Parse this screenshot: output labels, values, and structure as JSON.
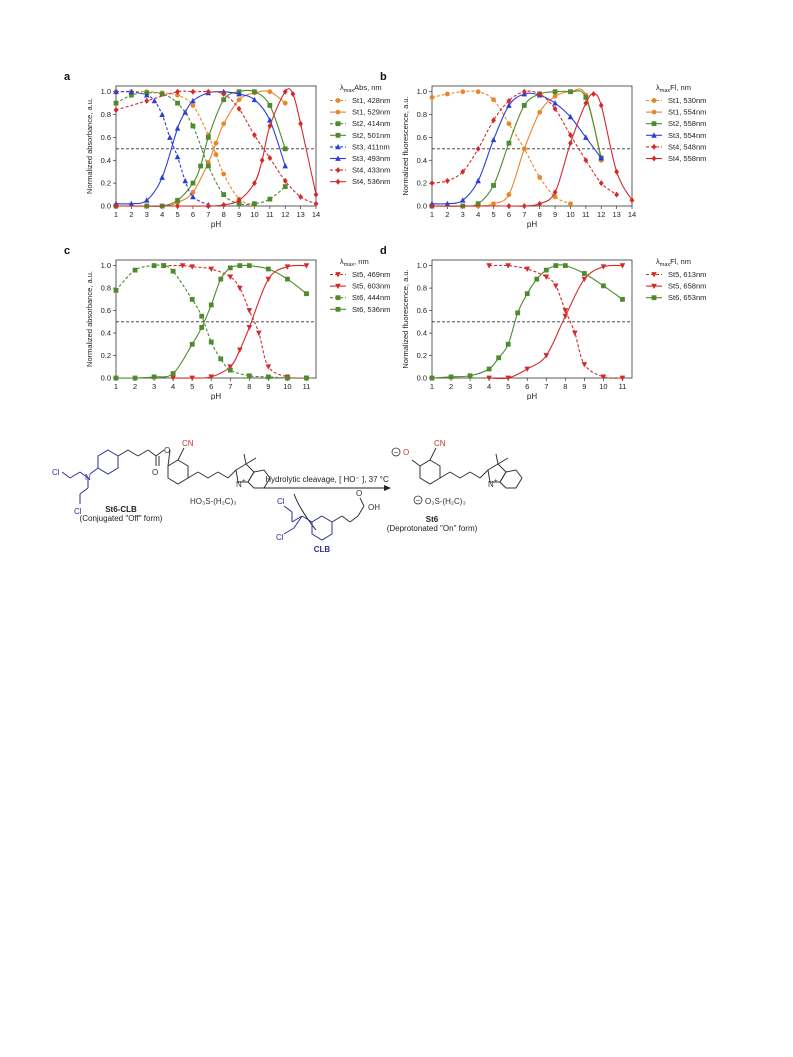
{
  "chart_data": [
    {
      "type": "line",
      "panel_label": "a",
      "xlabel": "pH",
      "ylabel": "Normalized absorbance, a.u.",
      "xlim": [
        1,
        14
      ],
      "ylim": [
        0,
        1.05
      ],
      "xticks": [
        1,
        2,
        3,
        4,
        5,
        6,
        7,
        8,
        9,
        10,
        11,
        12,
        13,
        14
      ],
      "yticks": [
        0.0,
        0.2,
        0.4,
        0.6,
        0.8,
        1.0
      ],
      "ytick_labels": [
        "0.0",
        "0.2",
        "0.4",
        "0.6",
        "0.8",
        "1.0"
      ],
      "reference_line": 0.5,
      "legend_title_prefix": "λ",
      "legend_title_sub": "max",
      "legend_title_suffix": "Abs, nm",
      "legend_position": "right",
      "series": [
        {
          "name": "St1, 428nm",
          "color": "#e8862a",
          "dash": true,
          "marker": "circle",
          "x": [
            1,
            2,
            3,
            4,
            5,
            6,
            7,
            7.5,
            8,
            9,
            10
          ],
          "y": [
            1.0,
            1.0,
            1.0,
            0.99,
            0.97,
            0.88,
            0.62,
            0.45,
            0.28,
            0.06,
            0.01
          ]
        },
        {
          "name": "St1, 529nm",
          "color": "#e8862a",
          "dash": false,
          "marker": "circle",
          "x": [
            1,
            4,
            5,
            6,
            7,
            7.5,
            8,
            9,
            10,
            11,
            12
          ],
          "y": [
            0.0,
            0.0,
            0.03,
            0.12,
            0.38,
            0.55,
            0.72,
            0.93,
            0.99,
            1.0,
            0.9
          ]
        },
        {
          "name": "St2, 414nm",
          "color": "#4e8a2e",
          "dash": true,
          "marker": "square",
          "x": [
            1,
            2,
            3,
            4,
            5,
            6,
            7,
            8,
            9,
            10,
            11,
            12
          ],
          "y": [
            0.9,
            0.97,
            0.99,
            0.98,
            0.9,
            0.7,
            0.35,
            0.1,
            0.02,
            0.02,
            0.06,
            0.17
          ]
        },
        {
          "name": "St2, 501nm",
          "color": "#4e8a2e",
          "dash": false,
          "marker": "square",
          "x": [
            1,
            3,
            4,
            5,
            6,
            6.5,
            7,
            8,
            9,
            10,
            11,
            12
          ],
          "y": [
            0.0,
            0.0,
            0.0,
            0.05,
            0.2,
            0.35,
            0.6,
            0.93,
            1.0,
            1.0,
            0.88,
            0.5
          ]
        },
        {
          "name": "St3, 411nm",
          "color": "#2b3fd6",
          "dash": true,
          "marker": "triangle",
          "x": [
            1,
            2,
            3,
            3.5,
            4,
            4.5,
            5,
            5.5,
            6,
            7
          ],
          "y": [
            1.0,
            1.0,
            0.97,
            0.92,
            0.8,
            0.6,
            0.43,
            0.22,
            0.08,
            0.01
          ]
        },
        {
          "name": "St3, 493nm",
          "color": "#2b3fd6",
          "dash": false,
          "marker": "triangle",
          "x": [
            1,
            2,
            3,
            4,
            5,
            5.5,
            6,
            7,
            8,
            9,
            10,
            11,
            12
          ],
          "y": [
            0.02,
            0.02,
            0.05,
            0.25,
            0.68,
            0.82,
            0.92,
            0.99,
            1.0,
            0.98,
            0.93,
            0.75,
            0.35
          ]
        },
        {
          "name": "St4, 433nm",
          "color": "#d42a2a",
          "dash": true,
          "marker": "diamond",
          "x": [
            1,
            3,
            5,
            6,
            7,
            8,
            9,
            10,
            11,
            12,
            13,
            14
          ],
          "y": [
            0.84,
            0.92,
            1.0,
            1.0,
            1.0,
            0.98,
            0.85,
            0.62,
            0.42,
            0.22,
            0.08,
            0.02
          ]
        },
        {
          "name": "St4, 536nm",
          "color": "#d42a2a",
          "dash": false,
          "marker": "diamond",
          "x": [
            1,
            5,
            7,
            8,
            9,
            10,
            10.5,
            11,
            12,
            12.5,
            13,
            14
          ],
          "y": [
            0.0,
            0.0,
            0.0,
            0.01,
            0.05,
            0.2,
            0.4,
            0.7,
            1.0,
            0.98,
            0.72,
            0.1
          ]
        }
      ]
    },
    {
      "type": "line",
      "panel_label": "b",
      "xlabel": "pH",
      "ylabel": "Normalized fluorescence, a.u.",
      "xlim": [
        1,
        14
      ],
      "ylim": [
        0,
        1.05
      ],
      "xticks": [
        1,
        2,
        3,
        4,
        5,
        6,
        7,
        8,
        9,
        10,
        11,
        12,
        13,
        14
      ],
      "yticks": [
        0.0,
        0.2,
        0.4,
        0.6,
        0.8,
        1.0
      ],
      "ytick_labels": [
        "0.0",
        "0.2",
        "0.4",
        "0.6",
        "0.8",
        "1.0"
      ],
      "reference_line": 0.5,
      "legend_title_prefix": "λ",
      "legend_title_sub": "max",
      "legend_title_suffix": "Fl, nm",
      "legend_position": "right",
      "series": [
        {
          "name": "St1, 530nm",
          "color": "#e8862a",
          "dash": true,
          "marker": "circle",
          "x": [
            1,
            2,
            3,
            4,
            5,
            6,
            7,
            8,
            9,
            10
          ],
          "y": [
            0.95,
            0.98,
            1.0,
            1.0,
            0.93,
            0.72,
            0.5,
            0.25,
            0.08,
            0.02
          ]
        },
        {
          "name": "St1, 554nm",
          "color": "#e8862a",
          "dash": false,
          "marker": "circle",
          "x": [
            1,
            4,
            5,
            6,
            7,
            8,
            9,
            10,
            11,
            12
          ],
          "y": [
            0.0,
            0.0,
            0.02,
            0.1,
            0.5,
            0.82,
            0.96,
            1.0,
            0.97,
            0.4
          ]
        },
        {
          "name": "St2, 558nm",
          "color": "#4e8a2e",
          "dash": false,
          "marker": "square",
          "x": [
            1,
            3,
            4,
            5,
            6,
            7,
            8,
            9,
            10,
            11,
            12
          ],
          "y": [
            0.0,
            0.0,
            0.02,
            0.18,
            0.55,
            0.88,
            0.98,
            1.0,
            1.0,
            0.95,
            0.42
          ]
        },
        {
          "name": "St3, 554nm",
          "color": "#2b3fd6",
          "dash": false,
          "marker": "triangle",
          "x": [
            1,
            2,
            3,
            4,
            5,
            6,
            7,
            8,
            9,
            10,
            11,
            12
          ],
          "y": [
            0.02,
            0.02,
            0.05,
            0.22,
            0.58,
            0.88,
            0.98,
            0.97,
            0.9,
            0.78,
            0.6,
            0.42
          ]
        },
        {
          "name": "St4, 548nm",
          "color": "#d42a2a",
          "dash": true,
          "marker": "diamond",
          "x": [
            1,
            2,
            3,
            4,
            5,
            6,
            7,
            8,
            9,
            10,
            11,
            12,
            13
          ],
          "y": [
            0.2,
            0.22,
            0.3,
            0.5,
            0.75,
            0.92,
            1.0,
            0.98,
            0.85,
            0.62,
            0.4,
            0.2,
            0.1
          ]
        },
        {
          "name": "St4, 558nm",
          "color": "#d42a2a",
          "dash": false,
          "marker": "diamond",
          "x": [
            1,
            6,
            7,
            8,
            9,
            10,
            11,
            11.5,
            12,
            13,
            14
          ],
          "y": [
            0.0,
            0.0,
            0.0,
            0.02,
            0.12,
            0.55,
            0.9,
            0.98,
            0.88,
            0.3,
            0.05
          ]
        }
      ]
    },
    {
      "type": "line",
      "panel_label": "c",
      "xlabel": "pH",
      "ylabel": "Normalized absorbance, a.u.",
      "xlim": [
        1,
        11.5
      ],
      "ylim": [
        0,
        1.05
      ],
      "xticks": [
        1,
        2,
        3,
        4,
        5,
        6,
        7,
        8,
        9,
        10,
        11
      ],
      "yticks": [
        0.0,
        0.2,
        0.4,
        0.6,
        0.8,
        1.0
      ],
      "ytick_labels": [
        "0.0",
        "0.2",
        "0.4",
        "0.6",
        "0.8",
        "1.0"
      ],
      "reference_line": 0.5,
      "legend_title_prefix": "λ",
      "legend_title_sub": "max",
      "legend_title_suffix": ", nm",
      "legend_position": "right",
      "series": [
        {
          "name": "St5, 469nm",
          "color": "#d42a2a",
          "dash": true,
          "marker": "triangle-down",
          "x": [
            3.5,
            4.5,
            5,
            6,
            7,
            7.5,
            8,
            8.5,
            9,
            10,
            11
          ],
          "y": [
            1.0,
            1.0,
            0.99,
            0.97,
            0.9,
            0.8,
            0.6,
            0.4,
            0.1,
            0.01,
            0.0
          ]
        },
        {
          "name": "St5, 603nm",
          "color": "#d42a2a",
          "dash": false,
          "marker": "triangle-down",
          "x": [
            4,
            5,
            6,
            7,
            7.5,
            8,
            9,
            10,
            11
          ],
          "y": [
            0.0,
            0.0,
            0.01,
            0.1,
            0.25,
            0.45,
            0.88,
            0.99,
            1.0
          ]
        },
        {
          "name": "St6, 444nm",
          "color": "#4e8a2e",
          "dash": true,
          "marker": "square",
          "x": [
            1,
            2,
            3,
            3.5,
            4,
            5,
            5.5,
            6,
            6.5,
            7,
            8,
            9,
            10,
            11
          ],
          "y": [
            0.78,
            0.96,
            1.0,
            1.0,
            0.95,
            0.7,
            0.55,
            0.32,
            0.17,
            0.07,
            0.02,
            0.01,
            0.0,
            0.0
          ]
        },
        {
          "name": "St6, 536nm",
          "color": "#4e8a2e",
          "dash": false,
          "marker": "square",
          "x": [
            1,
            2,
            3,
            4,
            5,
            5.5,
            6,
            6.5,
            7,
            7.5,
            8,
            9,
            10,
            11
          ],
          "y": [
            0.0,
            0.0,
            0.01,
            0.04,
            0.3,
            0.45,
            0.65,
            0.88,
            0.98,
            1.0,
            1.0,
            0.97,
            0.88,
            0.75
          ]
        }
      ]
    },
    {
      "type": "line",
      "panel_label": "d",
      "xlabel": "pH",
      "ylabel": "Normalized fluorescence, a.u.",
      "xlim": [
        1,
        11.5
      ],
      "ylim": [
        0,
        1.05
      ],
      "xticks": [
        1,
        2,
        3,
        4,
        5,
        6,
        7,
        8,
        9,
        10,
        11
      ],
      "yticks": [
        0.0,
        0.2,
        0.4,
        0.6,
        0.8,
        1.0
      ],
      "ytick_labels": [
        "0.0",
        "0.2",
        "0.4",
        "0.6",
        "0.8",
        "1.0"
      ],
      "reference_line": 0.5,
      "legend_title_prefix": "λ",
      "legend_title_sub": "max",
      "legend_title_suffix": "Fl, nm",
      "legend_position": "right",
      "series": [
        {
          "name": "St5, 613nm",
          "color": "#d42a2a",
          "dash": true,
          "marker": "triangle-down",
          "x": [
            4,
            5,
            6,
            7,
            7.5,
            8,
            8.5,
            9,
            10,
            11
          ],
          "y": [
            1.0,
            1.0,
            0.97,
            0.9,
            0.82,
            0.6,
            0.4,
            0.12,
            0.01,
            0.0
          ]
        },
        {
          "name": "St5, 658nm",
          "color": "#d42a2a",
          "dash": false,
          "marker": "triangle-down",
          "x": [
            4,
            5,
            6,
            7,
            8,
            9,
            10,
            11
          ],
          "y": [
            0.0,
            0.0,
            0.08,
            0.2,
            0.55,
            0.88,
            0.99,
            1.0
          ]
        },
        {
          "name": "St6, 653nm",
          "color": "#4e8a2e",
          "dash": false,
          "marker": "square",
          "x": [
            1,
            2,
            3,
            4,
            4.5,
            5,
            5.5,
            6,
            6.5,
            7,
            7.5,
            8,
            9,
            10,
            11
          ],
          "y": [
            0.0,
            0.01,
            0.02,
            0.08,
            0.18,
            0.3,
            0.58,
            0.75,
            0.88,
            0.96,
            1.0,
            1.0,
            0.93,
            0.82,
            0.7
          ]
        }
      ]
    }
  ],
  "scheme": {
    "reaction_condition": "Hydrolytic cleavage, [ HO⁻ ], 37 °C",
    "reactant_name": "St6-CLB",
    "reactant_form": "(Conjugated \"Off\" form)",
    "product_name": "St6",
    "product_form": "(Deprotonated \"On\" form)",
    "byproduct_name": "CLB",
    "label_cl": "Cl",
    "label_n": "N",
    "label_o": "O",
    "label_oh": "OH",
    "label_cn": "CN",
    "label_sulfo_left": "HO₃S-(H₂C)₃",
    "label_sulfo_right": "O₃S-(H₂C)₃",
    "label_plus": "+",
    "label_minus": "−"
  }
}
